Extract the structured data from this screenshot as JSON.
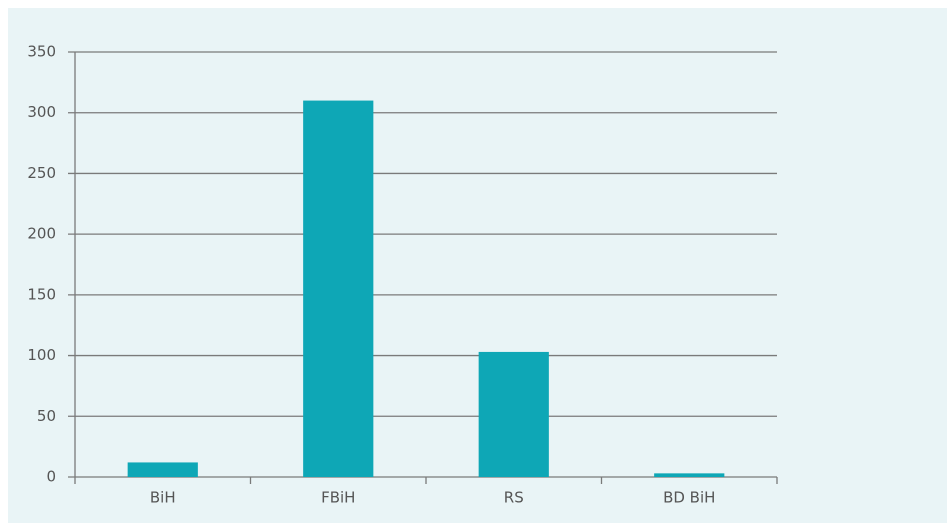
{
  "chart_data": {
    "type": "bar",
    "categories": [
      "BiH",
      "FBiH",
      "RS",
      "BD BiH"
    ],
    "values": [
      12,
      310,
      103,
      3
    ],
    "color": "#0ea7b6",
    "ylim": [
      0,
      350
    ],
    "yticks": [
      0,
      50,
      100,
      150,
      200,
      250,
      300,
      350
    ],
    "grid": true
  }
}
